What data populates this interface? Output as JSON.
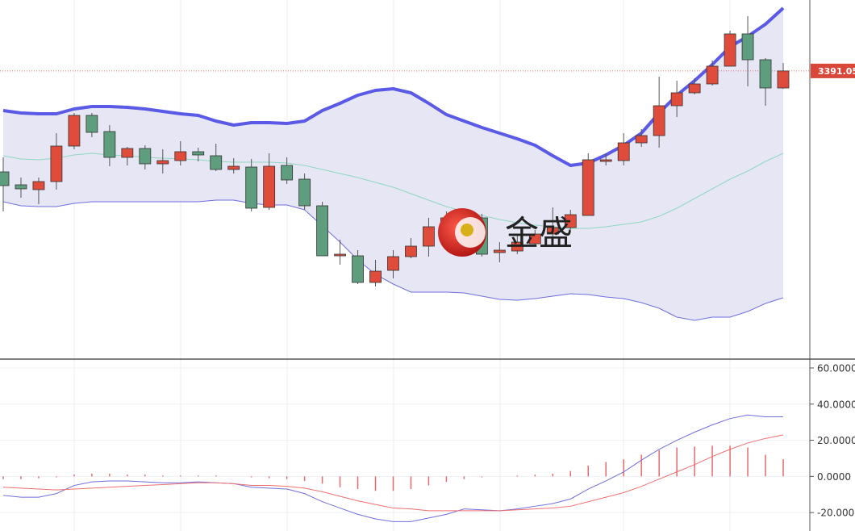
{
  "chart_data": [
    {
      "type": "candlestick",
      "open": [
        3328.5,
        3320.5,
        3317.5,
        3322.5,
        3344.5,
        3363.5,
        3353.5,
        3337.5,
        3343,
        3333.5,
        3335.5,
        3341,
        3338.5,
        3330,
        3331.5,
        3306.5,
        3332.5,
        3324,
        3307.5,
        3276.5,
        3276.5,
        3260,
        3267.5,
        3276,
        3282.5,
        3294.5,
        3297.5,
        3300,
        3278.5,
        3279.5,
        3284,
        3290,
        3294,
        3301.5,
        3335,
        3335.5,
        3346.5,
        3351,
        3369.5,
        3377.5,
        3383,
        3394,
        3414,
        3398,
        3380.5
      ],
      "high": [
        3337.5,
        3325,
        3325,
        3352.5,
        3365,
        3365,
        3357.5,
        3344,
        3345,
        3342.5,
        3347.5,
        3343.5,
        3346,
        3337,
        3336.5,
        3340,
        3337.5,
        3327.5,
        3310,
        3286.5,
        3280,
        3274,
        3280,
        3287.5,
        3300,
        3304,
        3305,
        3302.5,
        3285,
        3290,
        3292.5,
        3306.5,
        3305,
        3340,
        3340,
        3352.5,
        3355,
        3387.5,
        3385,
        3386.5,
        3397.5,
        3416,
        3425,
        3399,
        3396
      ],
      "low": [
        3304,
        3312.5,
        3308.5,
        3317.5,
        3342.5,
        3350,
        3332,
        3332.5,
        3330,
        3327.5,
        3332.5,
        3335,
        3329,
        3327.5,
        3304,
        3305,
        3321,
        3305,
        3276.5,
        3271,
        3259,
        3257.5,
        3262.5,
        3275,
        3276,
        3290,
        3292.5,
        3276,
        3272.5,
        3277.5,
        3282.5,
        3285,
        3292.5,
        3301.5,
        3332.5,
        3332.5,
        3344,
        3343.5,
        3362.5,
        3376.5,
        3382,
        3394,
        3381.5,
        3369.5,
        3380
      ],
      "close": [
        3320,
        3318,
        3322.5,
        3344.5,
        3363.5,
        3353,
        3337.5,
        3343,
        3333.5,
        3335.5,
        3341,
        3339,
        3330,
        3332,
        3306,
        3332,
        3323.5,
        3307.5,
        3276.5,
        3277.5,
        3260,
        3267,
        3276,
        3282.5,
        3294.5,
        3300,
        3302,
        3277.5,
        3280,
        3285,
        3290,
        3294,
        3302,
        3336,
        3336,
        3346.5,
        3351,
        3369.5,
        3377.5,
        3383,
        3394,
        3414,
        3398,
        3380.5,
        3391.05
      ],
      "up_color": "#e04c3c",
      "down_color": "#5e9e7e",
      "series": [
        {
          "color": "#5a5ae6",
          "line_width": 4,
          "values": [
            3366.5,
            3365,
            3364.5,
            3364.5,
            3367.5,
            3369,
            3369,
            3368.5,
            3367.5,
            3366,
            3364.5,
            3363.5,
            3360,
            3357.5,
            3359,
            3359,
            3358.5,
            3360,
            3366.5,
            3371,
            3376,
            3379,
            3380,
            3377.5,
            3371,
            3364,
            3360,
            3356,
            3352.5,
            3349,
            3345,
            3338.5,
            3332.5,
            3334,
            3339,
            3345,
            3352.5,
            3365,
            3376,
            3385,
            3395,
            3406,
            3412.5,
            3420,
            3430
          ]
        },
        {
          "color": "#8fd8c0",
          "line_width": 1,
          "values": [
            3338.5,
            3336.5,
            3336,
            3337,
            3339,
            3340,
            3339,
            3338.5,
            3337.5,
            3337,
            3336.5,
            3336,
            3335,
            3334.5,
            3334.5,
            3334.5,
            3334,
            3332.5,
            3330,
            3327.5,
            3325,
            3322,
            3319,
            3315,
            3311,
            3307,
            3304,
            3301.5,
            3299,
            3297,
            3295.5,
            3294.5,
            3293.5,
            3293.5,
            3294.5,
            3296,
            3297.5,
            3301,
            3306,
            3312,
            3318,
            3324,
            3329,
            3335,
            3340
          ]
        },
        {
          "color": "#6f6fe0",
          "line_width": 1,
          "values": [
            3310,
            3307.5,
            3307,
            3307,
            3309,
            3310,
            3310,
            3310,
            3310,
            3310,
            3310,
            3310,
            3311,
            3311,
            3309,
            3308,
            3308,
            3305,
            3295,
            3285,
            3274,
            3265,
            3259,
            3254,
            3254,
            3254,
            3253.5,
            3251.5,
            3249.5,
            3249,
            3250,
            3251.5,
            3253,
            3252.5,
            3251,
            3250,
            3247.5,
            3244,
            3238.5,
            3236.5,
            3238.5,
            3238.5,
            3242,
            3247,
            3250.5
          ]
        }
      ],
      "band_fill": "#e6e6f4",
      "ylim": [
        3212.5,
        3435
      ],
      "last_price": 3391.05,
      "last_price_color": "#d9473a",
      "watermark": "金盛"
    },
    {
      "type": "macd",
      "series": [
        {
          "color": "#6f6fe0",
          "values": [
            -10.5,
            -11.5,
            -11.5,
            -9.5,
            -5,
            -3,
            -2.5,
            -2.5,
            -3,
            -3.5,
            -3.5,
            -3,
            -3.5,
            -4,
            -6,
            -6.5,
            -7,
            -9.5,
            -14,
            -17.5,
            -21,
            -23.5,
            -25,
            -25,
            -23,
            -21,
            -18,
            -18.5,
            -19,
            -18,
            -16.5,
            -15,
            -12.5,
            -7,
            -2.5,
            2.5,
            9,
            15,
            20,
            24.5,
            28.5,
            32,
            34,
            33,
            33
          ]
        },
        {
          "color": "#f07070",
          "values": [
            -6,
            -6.5,
            -7,
            -7.5,
            -7,
            -6.5,
            -6,
            -5.5,
            -5,
            -4.5,
            -4,
            -3.5,
            -3.5,
            -4,
            -5,
            -5,
            -5.5,
            -6.5,
            -8.5,
            -11,
            -13.5,
            -15.5,
            -17.5,
            -18,
            -19,
            -19,
            -19,
            -19,
            -19,
            -18.5,
            -18,
            -17.5,
            -16.5,
            -14,
            -11.5,
            -9,
            -5.5,
            -1.5,
            2.5,
            6.5,
            11,
            15,
            18.5,
            21,
            23
          ]
        }
      ],
      "histogram": {
        "color": "#e86a6a",
        "values": [
          -1.5,
          -1.5,
          -1,
          -0.5,
          1,
          1.5,
          1.5,
          1,
          1,
          0.5,
          0.5,
          0.5,
          0.5,
          0,
          -0.5,
          -1,
          -1.5,
          -2.5,
          -4,
          -6,
          -7,
          -8,
          -8,
          -7,
          -5,
          -3,
          -1.5,
          -0.5,
          0,
          0.5,
          1,
          1.5,
          3,
          6,
          8,
          9.5,
          12,
          14.5,
          16,
          16.5,
          17,
          17,
          16,
          12,
          9.5
        ]
      },
      "ylim": [
        -30.2,
        64.9
      ],
      "yticks": [
        {
          "value": 60,
          "label": "60.0000"
        },
        {
          "value": 40,
          "label": "40.0000"
        },
        {
          "value": 20,
          "label": "20.0000"
        },
        {
          "value": 0,
          "label": "0.0000"
        },
        {
          "value": -20,
          "label": "-20.0000"
        }
      ],
      "grid": true
    }
  ]
}
